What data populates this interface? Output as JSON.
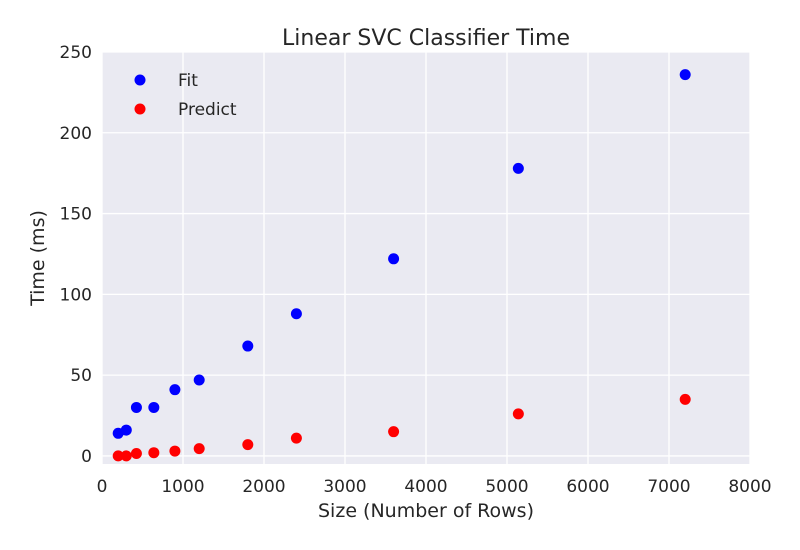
{
  "chart_data": {
    "type": "scatter",
    "title": "Linear SVC Classifier Time",
    "xlabel": "Size (Number of Rows)",
    "ylabel": "Time (ms)",
    "xlim": [
      0,
      8000
    ],
    "ylim": [
      -5,
      250
    ],
    "xticks": [
      0,
      1000,
      2000,
      3000,
      4000,
      5000,
      6000,
      7000,
      8000
    ],
    "yticks": [
      0,
      50,
      100,
      150,
      200,
      250
    ],
    "grid": true,
    "legend": "top-left",
    "series": [
      {
        "name": "Fit",
        "color": "#0000ff",
        "x": [
          200,
          300,
          425,
          640,
          900,
          1200,
          1800,
          2400,
          3600,
          5140,
          7200
        ],
        "y": [
          14,
          16,
          30,
          30,
          41,
          47,
          68,
          88,
          122,
          178,
          236
        ]
      },
      {
        "name": "Predict",
        "color": "#ff0000",
        "x": [
          200,
          300,
          425,
          640,
          900,
          1200,
          1800,
          2400,
          3600,
          5140,
          7200
        ],
        "y": [
          0,
          0,
          1.5,
          2,
          3,
          4.5,
          7,
          11,
          15,
          26,
          35
        ]
      }
    ]
  }
}
